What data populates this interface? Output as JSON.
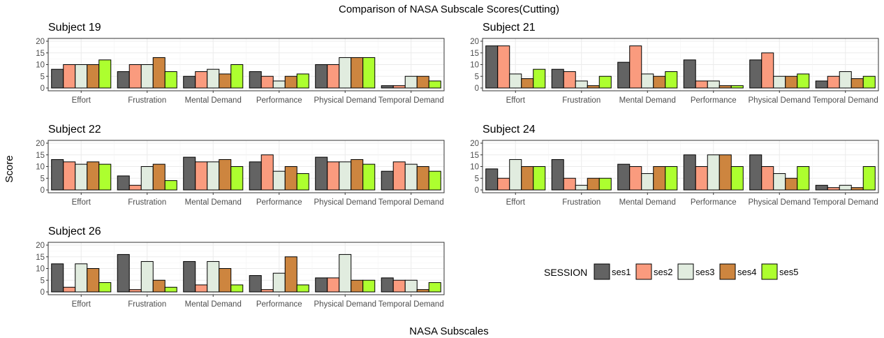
{
  "chart_data": {
    "type": "bar",
    "title": "Comparison of NASA Subscale Scores(Cutting)",
    "xlabel": "NASA Subscales",
    "ylabel": "Score",
    "ylim": [
      0,
      20
    ],
    "yticks": [
      0,
      5,
      10,
      15,
      20
    ],
    "grid": true,
    "legend": {
      "title": "SESSION",
      "placement": "right",
      "items": [
        {
          "name": "ses1",
          "color": "#636363"
        },
        {
          "name": "ses2",
          "color": "#fa9b7e"
        },
        {
          "name": "ses3",
          "color": "#e1ecdf"
        },
        {
          "name": "ses4",
          "color": "#cd853f"
        },
        {
          "name": "ses5",
          "color": "#adff2f"
        }
      ]
    },
    "categories": [
      "Effort",
      "Frustration",
      "Mental Demand",
      "Performance",
      "Physical Demand",
      "Temporal Demand"
    ],
    "panels": [
      {
        "title": "Subject 19",
        "series": [
          {
            "name": "ses1",
            "values": [
              8,
              7,
              5,
              7,
              10,
              1
            ]
          },
          {
            "name": "ses2",
            "values": [
              10,
              10,
              7,
              5,
              10,
              1
            ]
          },
          {
            "name": "ses3",
            "values": [
              10,
              10,
              8,
              3,
              13,
              5
            ]
          },
          {
            "name": "ses4",
            "values": [
              10,
              13,
              6,
              5,
              13,
              5
            ]
          },
          {
            "name": "ses5",
            "values": [
              12,
              7,
              10,
              6,
              13,
              3
            ]
          }
        ]
      },
      {
        "title": "Subject 21",
        "series": [
          {
            "name": "ses1",
            "values": [
              18,
              8,
              11,
              12,
              12,
              3
            ]
          },
          {
            "name": "ses2",
            "values": [
              18,
              7,
              18,
              3,
              15,
              5
            ]
          },
          {
            "name": "ses3",
            "values": [
              6,
              3,
              6,
              3,
              5,
              7
            ]
          },
          {
            "name": "ses4",
            "values": [
              4,
              1,
              5,
              1,
              5,
              4
            ]
          },
          {
            "name": "ses5",
            "values": [
              8,
              5,
              7,
              1,
              6,
              5
            ]
          }
        ]
      },
      {
        "title": "Subject 22",
        "series": [
          {
            "name": "ses1",
            "values": [
              13,
              6,
              14,
              12,
              14,
              8
            ]
          },
          {
            "name": "ses2",
            "values": [
              12,
              2,
              12,
              15,
              12,
              12
            ]
          },
          {
            "name": "ses3",
            "values": [
              11,
              10,
              12,
              8,
              12,
              11
            ]
          },
          {
            "name": "ses4",
            "values": [
              12,
              11,
              13,
              10,
              13,
              10
            ]
          },
          {
            "name": "ses5",
            "values": [
              11,
              4,
              10,
              7,
              11,
              8
            ]
          }
        ]
      },
      {
        "title": "Subject 24",
        "series": [
          {
            "name": "ses1",
            "values": [
              9,
              13,
              11,
              15,
              15,
              2
            ]
          },
          {
            "name": "ses2",
            "values": [
              5,
              5,
              10,
              10,
              10,
              1
            ]
          },
          {
            "name": "ses3",
            "values": [
              13,
              2,
              7,
              15,
              7,
              2
            ]
          },
          {
            "name": "ses4",
            "values": [
              10,
              5,
              10,
              15,
              5,
              1
            ]
          },
          {
            "name": "ses5",
            "values": [
              10,
              5,
              10,
              10,
              10,
              10
            ]
          }
        ]
      },
      {
        "title": "Subject 26",
        "series": [
          {
            "name": "ses1",
            "values": [
              12,
              16,
              13,
              7,
              6,
              6
            ]
          },
          {
            "name": "ses2",
            "values": [
              2,
              1,
              3,
              1,
              6,
              5
            ]
          },
          {
            "name": "ses3",
            "values": [
              12,
              13,
              13,
              8,
              16,
              5
            ]
          },
          {
            "name": "ses4",
            "values": [
              10,
              5,
              10,
              15,
              5,
              1
            ]
          },
          {
            "name": "ses5",
            "values": [
              4,
              2,
              3,
              3,
              5,
              4
            ]
          }
        ]
      }
    ]
  }
}
